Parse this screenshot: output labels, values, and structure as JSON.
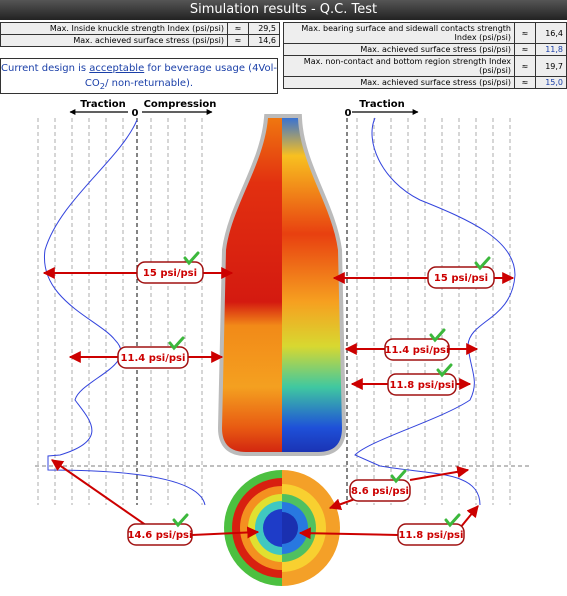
{
  "header": {
    "title": "Simulation results - Q.C. Test"
  },
  "left_table": {
    "rows": [
      [
        "Max. Inside knuckle strength Index (psi/psi)",
        "≈",
        "29,5"
      ],
      [
        "Max. achieved surface stress (psi/psi)",
        "≈",
        "14,6"
      ]
    ]
  },
  "note": {
    "parts": [
      "Current design is ",
      "acceptable",
      " for beverage usage (4Vol-CO",
      "2",
      "/ non-returnable)."
    ]
  },
  "right_table": {
    "rows": [
      [
        "Max. bearing surface and sidewall contacts strength Index (psi/psi)",
        "≈",
        "16,4"
      ],
      [
        "Max. achieved surface stress (psi/psi)",
        "≈",
        "11,8"
      ],
      [
        "Max. non-contact and bottom region strength Index (psi/psi)",
        "≈",
        "19,7"
      ],
      [
        "Max. achieved surface stress (psi/psi)",
        "≈",
        "15,0"
      ]
    ]
  },
  "left_axis": {
    "traction": "Traction",
    "compression": "Compression",
    "zero": "0"
  },
  "right_axis": {
    "traction": "Traction",
    "zero": "0"
  },
  "callouts": [
    "15 psi/psi",
    "11.4 psi/psi",
    "15 psi/psi",
    "11.4 psi/psi",
    "11.8 psi/psi",
    "8.6 psi/psi",
    "14.6 psi/psi",
    "11.8 psi/psi"
  ]
}
